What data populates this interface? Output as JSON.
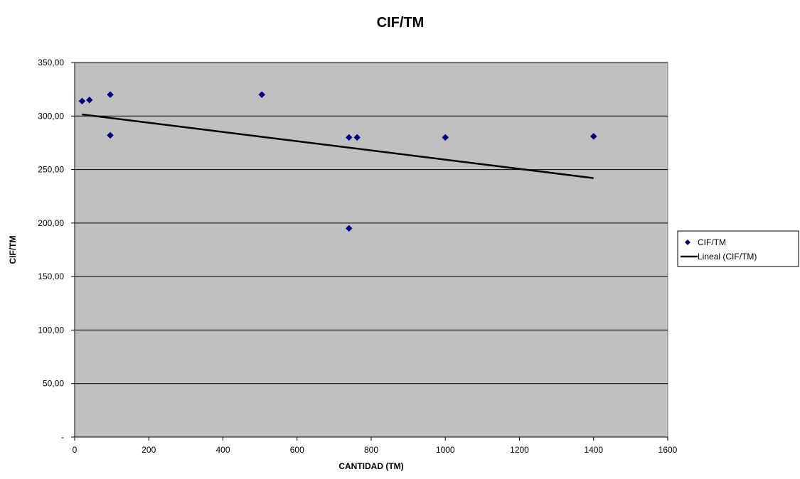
{
  "chart_data": {
    "type": "scatter",
    "title": "CIF/TM",
    "xlabel": "CANTIDAD (TM)",
    "ylabel": "CIF/TM",
    "xlim": [
      0,
      1600
    ],
    "ylim": [
      0,
      350
    ],
    "x_ticks": [
      "0",
      "200",
      "400",
      "600",
      "800",
      "1000",
      "1200",
      "1400",
      "1600"
    ],
    "x_tick_values": [
      0,
      200,
      400,
      600,
      800,
      1000,
      1200,
      1400,
      1600
    ],
    "y_ticks": [
      "-",
      "50,00",
      "100,00",
      "150,00",
      "200,00",
      "250,00",
      "300,00",
      "350,00"
    ],
    "y_tick_values": [
      0,
      50,
      100,
      150,
      200,
      250,
      300,
      350
    ],
    "grid": "horizontal",
    "plot_background": "#C0C0C0",
    "legend_position": "right",
    "series": [
      {
        "name": "CIF/TM",
        "kind": "points",
        "marker": "diamond",
        "color": "#000080",
        "points": [
          {
            "x": 20,
            "y": 314
          },
          {
            "x": 40,
            "y": 315
          },
          {
            "x": 96,
            "y": 320
          },
          {
            "x": 96,
            "y": 282
          },
          {
            "x": 505,
            "y": 320
          },
          {
            "x": 740,
            "y": 280
          },
          {
            "x": 762,
            "y": 280
          },
          {
            "x": 740,
            "y": 195
          },
          {
            "x": 1000,
            "y": 280
          },
          {
            "x": 1400,
            "y": 281
          }
        ]
      },
      {
        "name": "Lineal (CIF/TM)",
        "kind": "trendline",
        "color": "#000000",
        "points": [
          {
            "x": 20,
            "y": 301.5
          },
          {
            "x": 1400,
            "y": 242
          }
        ]
      }
    ]
  }
}
